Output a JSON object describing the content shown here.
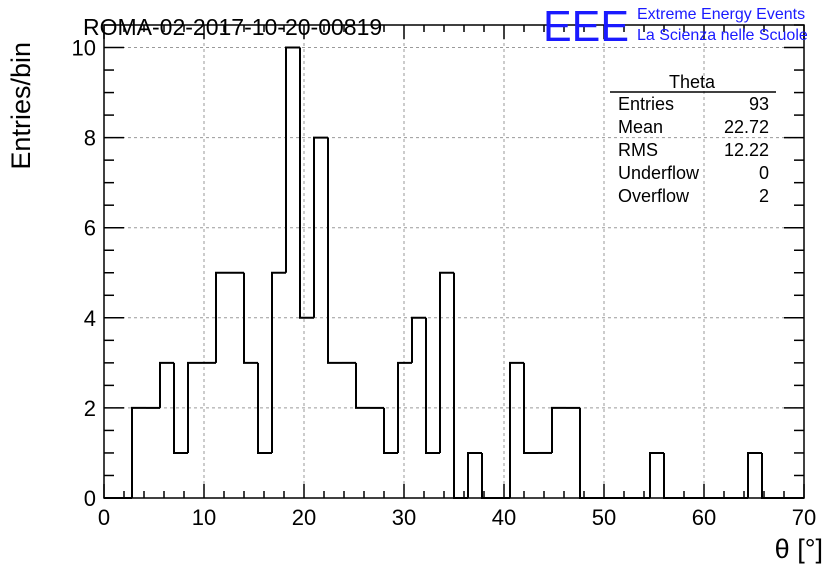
{
  "title": "ROMA-02-2017-10-20-00819",
  "logo": {
    "mark": "EEE",
    "line1": "Extreme Energy Events",
    "line2": "La Scienza nelle Scuole",
    "color": "#1a1aff"
  },
  "stats_box": {
    "name": "Theta",
    "rows": [
      {
        "label": "Entries",
        "value": "93"
      },
      {
        "label": "Mean",
        "value": "22.72"
      },
      {
        "label": "RMS",
        "value": "12.22"
      },
      {
        "label": "Underflow",
        "value": "0"
      },
      {
        "label": "Overflow",
        "value": "2"
      }
    ]
  },
  "chart_data": {
    "type": "bar",
    "style": "step-histogram",
    "xlabel": "θ [°]",
    "ylabel": "Entries/bin",
    "xlim": [
      0,
      70
    ],
    "ylim": [
      0,
      10.5
    ],
    "grid": true,
    "x_ticks": [
      0,
      10,
      20,
      30,
      40,
      50,
      60,
      70
    ],
    "y_ticks": [
      0,
      2,
      4,
      6,
      8,
      10
    ],
    "bin_width": 1.4,
    "bin_start": 0,
    "values": [
      0,
      0,
      2,
      2,
      3,
      1,
      3,
      3,
      5,
      5,
      3,
      1,
      5,
      10,
      4,
      8,
      3,
      3,
      2,
      2,
      1,
      3,
      4,
      1,
      5,
      0,
      1,
      0,
      0,
      3,
      1,
      1,
      2,
      2,
      0,
      0,
      0,
      0,
      0,
      1,
      0,
      0,
      0,
      0,
      0,
      0,
      1,
      0,
      0,
      0
    ]
  }
}
